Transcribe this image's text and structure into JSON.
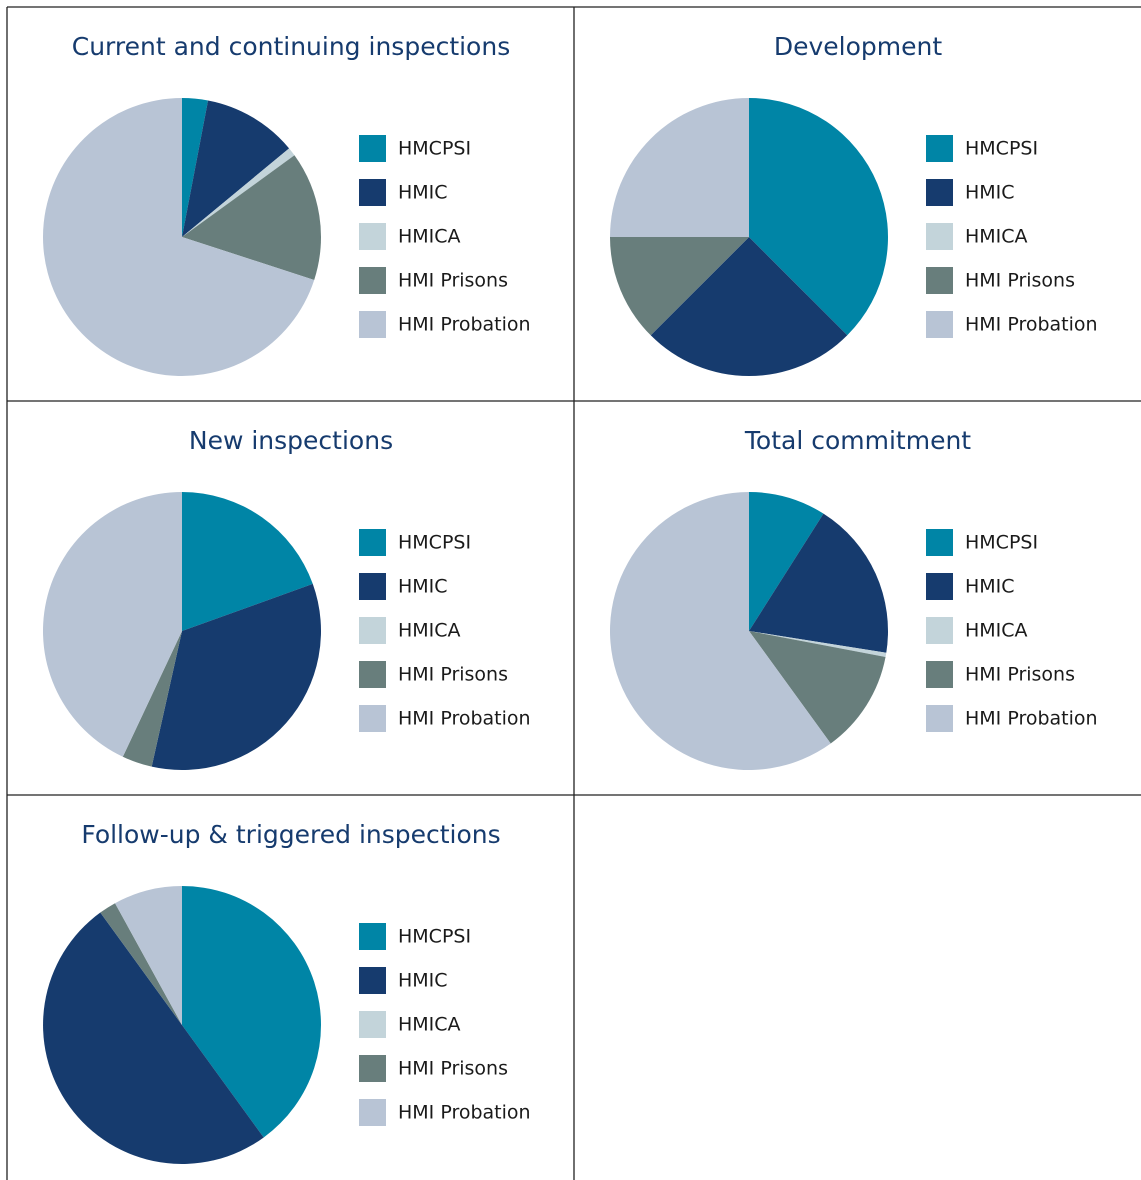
{
  "chart_data": [
    {
      "type": "pie",
      "title": "Current and continuing inspections",
      "categories": [
        "HMCPSI",
        "HMIC",
        "HMICA",
        "HMI Prisons",
        "HMI Probation"
      ],
      "values": [
        3,
        11,
        1,
        15,
        70
      ],
      "colors": [
        "#0085a6",
        "#163b6e",
        "#c3d4da",
        "#687e7c",
        "#b8c4d5"
      ]
    },
    {
      "type": "pie",
      "title": "Development",
      "categories": [
        "HMCPSI",
        "HMIC",
        "HMICA",
        "HMI Prisons",
        "HMI Probation"
      ],
      "values": [
        37.5,
        25,
        0,
        12.5,
        25
      ],
      "colors": [
        "#0085a6",
        "#163b6e",
        "#c3d4da",
        "#687e7c",
        "#b8c4d5"
      ]
    },
    {
      "type": "pie",
      "title": "New inspections",
      "categories": [
        "HMCPSI",
        "HMIC",
        "HMICA",
        "HMI Prisons",
        "HMI Probation"
      ],
      "values": [
        19.5,
        34,
        0,
        3.5,
        43
      ],
      "colors": [
        "#0085a6",
        "#163b6e",
        "#c3d4da",
        "#687e7c",
        "#b8c4d5"
      ]
    },
    {
      "type": "pie",
      "title": "Total commitment",
      "categories": [
        "HMCPSI",
        "HMIC",
        "HMICA",
        "HMI Prisons",
        "HMI Probation"
      ],
      "values": [
        9,
        18.5,
        0.5,
        12,
        60
      ],
      "colors": [
        "#0085a6",
        "#163b6e",
        "#c3d4da",
        "#687e7c",
        "#b8c4d5"
      ]
    },
    {
      "type": "pie",
      "title": "Follow-up & triggered inspections",
      "categories": [
        "HMCPSI",
        "HMIC",
        "HMICA",
        "HMI Prisons",
        "HMI Probation"
      ],
      "values": [
        40,
        50,
        0,
        2,
        8
      ],
      "colors": [
        "#0085a6",
        "#163b6e",
        "#c3d4da",
        "#687e7c",
        "#b8c4d5"
      ]
    }
  ]
}
